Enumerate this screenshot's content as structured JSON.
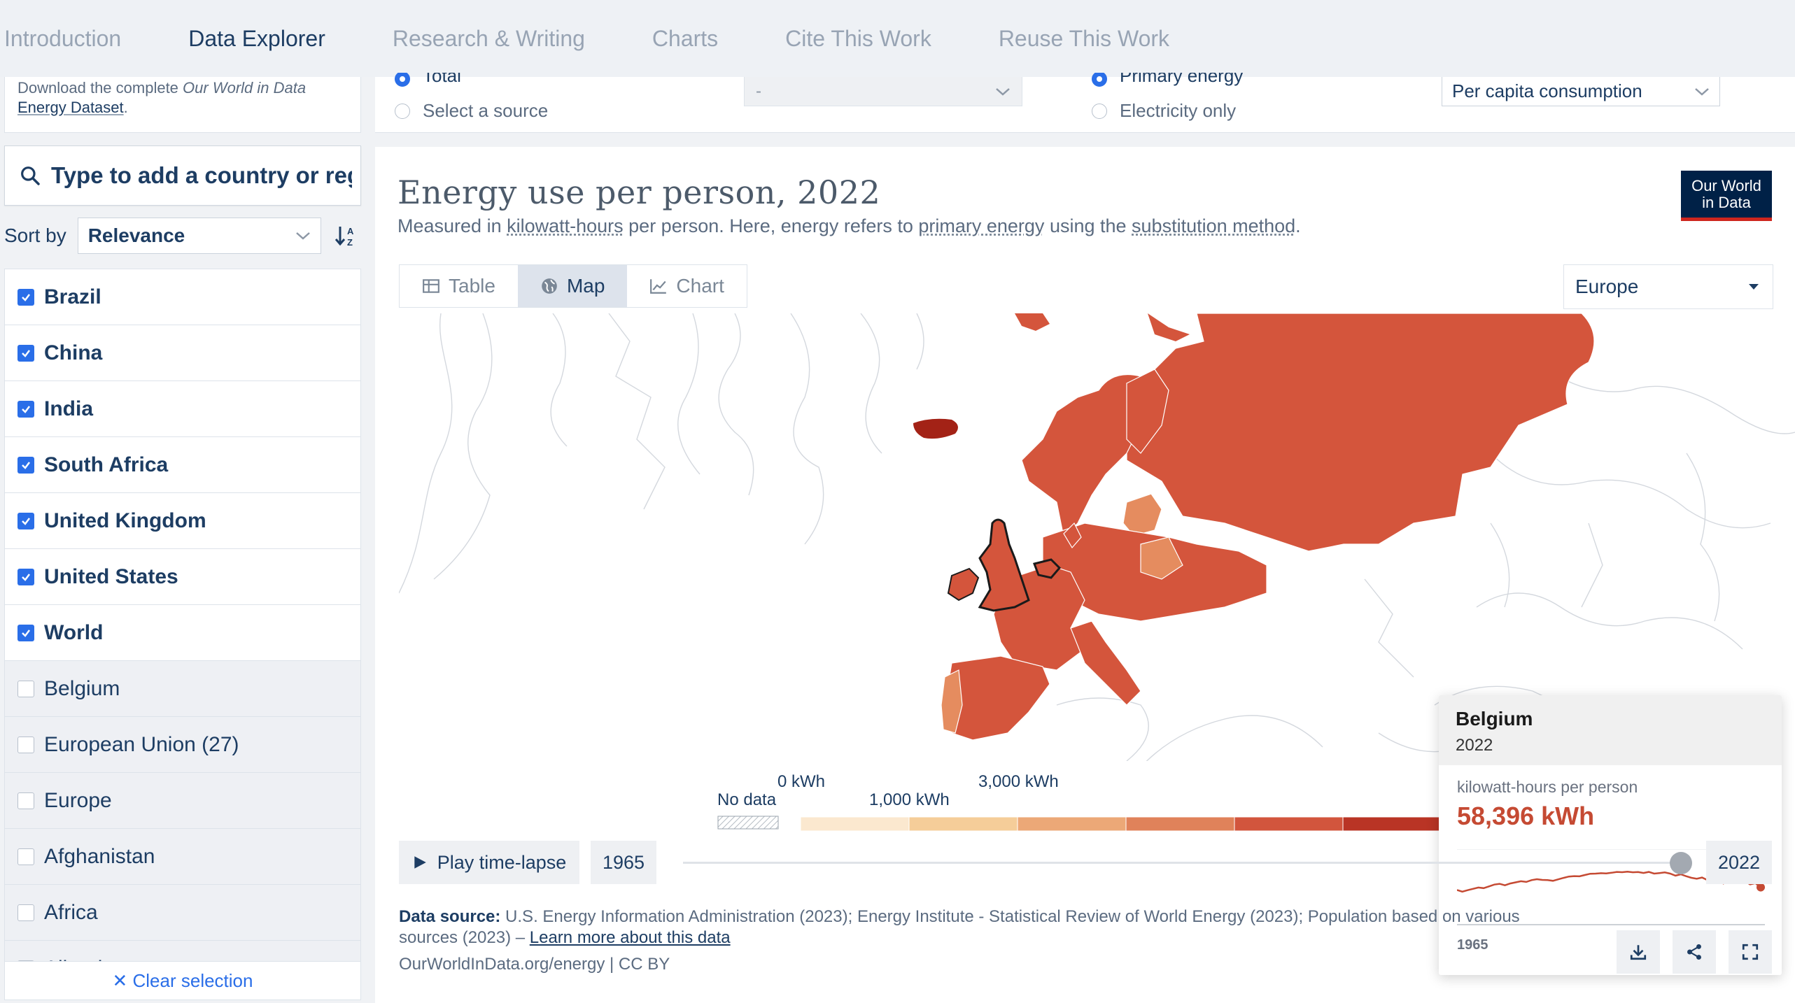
{
  "nav": {
    "items": [
      {
        "label": "Introduction",
        "active": false
      },
      {
        "label": "Data Explorer",
        "active": true
      },
      {
        "label": "Research & Writing",
        "active": false
      },
      {
        "label": "Charts",
        "active": false
      },
      {
        "label": "Cite This Work",
        "active": false
      },
      {
        "label": "Reuse This Work",
        "active": false
      }
    ]
  },
  "sidebar": {
    "download_prefix": "Download the complete ",
    "download_italic": "Our World in Data",
    "download_link": "Energy Dataset",
    "download_suffix": ".",
    "search_placeholder": "Type to add a country or region",
    "sort_label": "Sort by",
    "sort_value": "Relevance",
    "countries": [
      {
        "name": "Brazil",
        "checked": true
      },
      {
        "name": "China",
        "checked": true
      },
      {
        "name": "India",
        "checked": true
      },
      {
        "name": "South Africa",
        "checked": true
      },
      {
        "name": "United Kingdom",
        "checked": true
      },
      {
        "name": "United States",
        "checked": true
      },
      {
        "name": "World",
        "checked": true
      },
      {
        "name": "Belgium",
        "checked": false
      },
      {
        "name": "European Union (27)",
        "checked": false
      },
      {
        "name": "Europe",
        "checked": false
      },
      {
        "name": "Afghanistan",
        "checked": false
      },
      {
        "name": "Africa",
        "checked": false
      },
      {
        "name": "Albania",
        "checked": false
      }
    ],
    "clear_selection": "✕ Clear selection"
  },
  "controls": {
    "source_total": "Total",
    "source_select": "Select a source",
    "source_dropdown": "-",
    "energy_primary": "Primary energy",
    "energy_electricity": "Electricity only",
    "metric_value": "Per capita consumption"
  },
  "chart": {
    "title": "Energy use per person, 2022",
    "subtitle_parts": [
      "Measured in ",
      "kilowatt-hours",
      " per person. Here, energy refers to ",
      "primary energy",
      " using the ",
      "substitution method",
      "."
    ],
    "logo_line1": "Our World",
    "logo_line2": "in Data",
    "tabs": [
      "Table",
      "Map",
      "Chart"
    ],
    "active_tab": "Map",
    "region": "Europe",
    "legend": {
      "no_data": "No data",
      "ticks": [
        "0 kWh",
        "1,000 kWh",
        "3,000 kWh"
      ],
      "colors": [
        "#fbe8cf",
        "#f5cd99",
        "#eca877",
        "#e0825a",
        "#d2553d",
        "#b93425",
        "#9e1f17"
      ]
    },
    "colors": {
      "map_main": "#d4553c",
      "map_light": "#e58c5f",
      "map_dark": "#a32216",
      "accent": "#c54a33"
    }
  },
  "tooltip": {
    "country": "Belgium",
    "year": "2022",
    "unit": "kilowatt-hours per person",
    "value": "58,396 kWh",
    "x_start": "1965",
    "x_end": "2022",
    "series_kwh": [
      56000,
      54500,
      55800,
      57000,
      58200,
      57600,
      59200,
      60800,
      61500,
      60200,
      61800,
      62800,
      63800,
      63200,
      64800,
      65600,
      65000,
      64800,
      64200,
      65500,
      66800,
      68000,
      68400,
      68200,
      69400,
      70500,
      70600,
      71000,
      70800,
      71400,
      72100,
      71900,
      72300,
      71800,
      72000,
      71200,
      72100,
      70600,
      71100,
      71700,
      70600,
      68800,
      70000,
      68300,
      66900,
      66000,
      67100,
      64800,
      66500,
      66800,
      61800,
      64900,
      64700,
      66000,
      64100,
      61000,
      62100,
      58396
    ]
  },
  "timeline": {
    "play_label": "Play time-lapse",
    "start_year": "1965",
    "end_year": "2022"
  },
  "footer": {
    "source_label": "Data source:",
    "source_text": " U.S. Energy Information Administration (2023); Energy Institute - Statistical Review of World Energy (2023); Population based on various sources (2023) – ",
    "learn_more": "Learn more about this data",
    "license": "OurWorldInData.org/energy | CC BY"
  }
}
